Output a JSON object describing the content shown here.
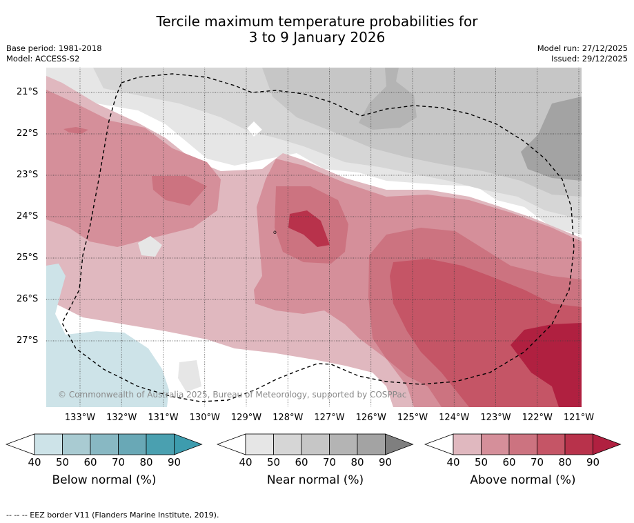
{
  "title": {
    "line1": "Tercile maximum temperature probabilities for",
    "line2": "3 to 9 January 2026"
  },
  "meta": {
    "base_period": "Base period: 1981-2018",
    "model": "Model: ACCESS-S2",
    "model_run": "Model run: 27/12/2025",
    "issued": "Issued: 29/12/2025"
  },
  "map": {
    "lat_labels": [
      "21°S",
      "22°S",
      "23°S",
      "24°S",
      "25°S",
      "26°S",
      "27°S"
    ],
    "lon_labels": [
      "133°W",
      "132°W",
      "131°W",
      "130°W",
      "129°W",
      "128°W",
      "127°W",
      "126°W",
      "125°W",
      "124°W",
      "123°W",
      "122°W",
      "121°W"
    ],
    "copyright": "© Commonwealth of Australia 2025, Bureau of Meteorology, supported by COSPPac"
  },
  "colorbars": [
    {
      "label": "Below normal (%)",
      "ticks": [
        "40",
        "50",
        "60",
        "70",
        "80",
        "90"
      ],
      "colors": [
        "#ffffff",
        "#cde3e8",
        "#a9cbd2",
        "#88b8c3",
        "#69a8b6",
        "#4aa0b0",
        "#3d9cae"
      ]
    },
    {
      "label": "Near normal (%)",
      "ticks": [
        "40",
        "50",
        "60",
        "70",
        "80",
        "90"
      ],
      "colors": [
        "#ffffff",
        "#e6e6e6",
        "#d6d6d6",
        "#c6c6c6",
        "#b4b4b4",
        "#a3a3a3",
        "#7f7f7f"
      ]
    },
    {
      "label": "Above normal (%)",
      "ticks": [
        "40",
        "50",
        "60",
        "70",
        "80",
        "90"
      ],
      "colors": [
        "#ffffff",
        "#e0b8bf",
        "#d58f9a",
        "#cc7380",
        "#c55566",
        "#b8324b",
        "#b02040"
      ]
    }
  ],
  "footnote": "--  --  -- EEZ border V11 (Flanders Marine Institute, 2019)."
}
